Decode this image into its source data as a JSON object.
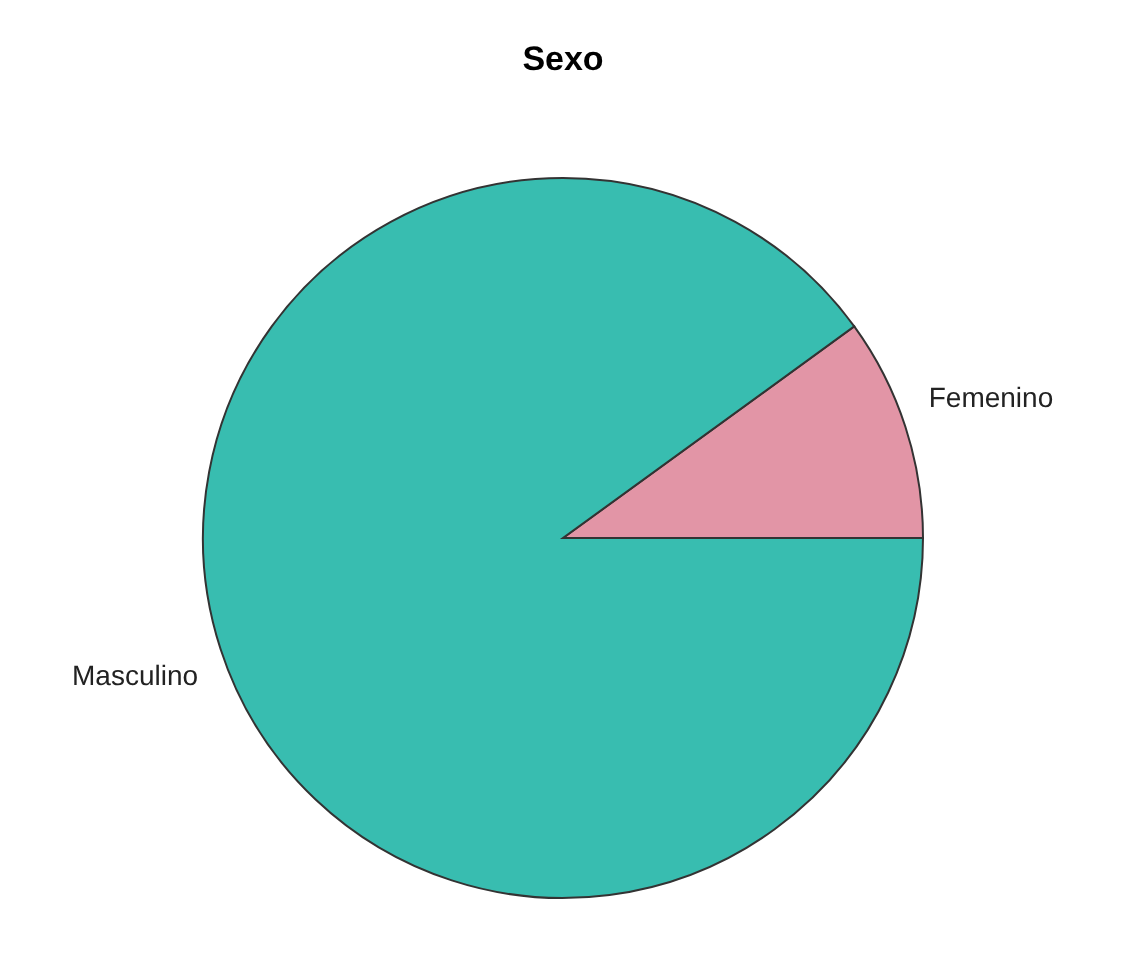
{
  "chart_data": {
    "type": "pie",
    "title": "Sexo",
    "categories": [
      "Femenino",
      "Masculino"
    ],
    "values": [
      10,
      90
    ],
    "colors": [
      "#e295a6",
      "#38bdb0"
    ]
  }
}
